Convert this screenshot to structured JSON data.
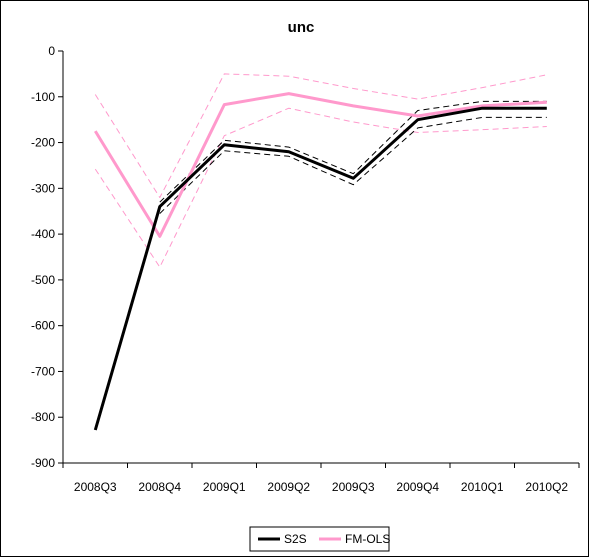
{
  "chart_data": {
    "type": "line",
    "title": "unc",
    "xlabel": "",
    "ylabel": "",
    "categories": [
      "2008Q3",
      "2008Q4",
      "2009Q1",
      "2009Q2",
      "2009Q3",
      "2009Q4",
      "2010Q1",
      "2010Q2"
    ],
    "ylim": [
      -900,
      0
    ],
    "yticks": [
      0,
      -100,
      -200,
      -300,
      -400,
      -500,
      -600,
      -700,
      -800,
      -900
    ],
    "grid": false,
    "legend_position": "bottom",
    "series": [
      {
        "name": "S2S",
        "color": "#000000",
        "style": "solid",
        "values": [
          -828,
          -340,
          -205,
          -220,
          -278,
          -150,
          -125,
          -125
        ]
      },
      {
        "color": "#000000",
        "style": "dashed",
        "values": [
          null,
          -330,
          -195,
          -210,
          -268,
          -130,
          -110,
          -110
        ]
      },
      {
        "color": "#000000",
        "style": "dashed",
        "values": [
          null,
          -355,
          -218,
          -230,
          -292,
          -168,
          -145,
          -145
        ]
      },
      {
        "name": "FM-OLS",
        "color": "#ff99cc",
        "style": "solid",
        "values": [
          -175,
          -405,
          -117,
          -93,
          -120,
          -142,
          -120,
          -112
        ]
      },
      {
        "color": "#ff99cc",
        "style": "dashed",
        "values": [
          -95,
          -320,
          -50,
          -55,
          -82,
          -105,
          -80,
          -52
        ]
      },
      {
        "color": "#ff99cc",
        "style": "dashed",
        "values": [
          -258,
          -472,
          -185,
          -125,
          -155,
          -178,
          -172,
          -165
        ]
      }
    ]
  }
}
